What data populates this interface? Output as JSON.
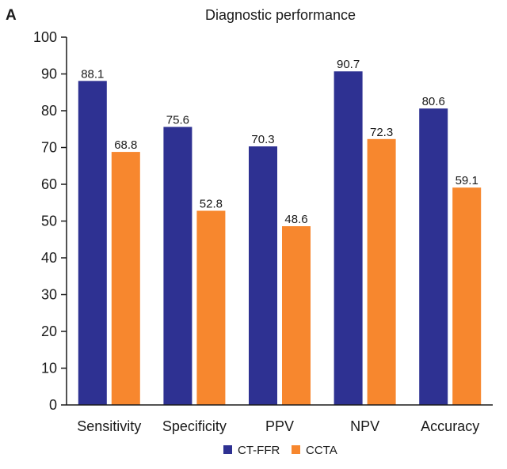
{
  "panel_label": "A",
  "chart_data": {
    "type": "bar",
    "title": "Diagnostic performance",
    "categories": [
      "Sensitivity",
      "Specificity",
      "PPV",
      "NPV",
      "Accuracy"
    ],
    "series": [
      {
        "name": "CT-FFR",
        "color": "#2e3192",
        "values": [
          88.1,
          75.6,
          70.3,
          90.7,
          80.6
        ]
      },
      {
        "name": "CCTA",
        "color": "#f7872e",
        "values": [
          68.8,
          52.8,
          48.6,
          72.3,
          59.1
        ]
      }
    ],
    "ylim": [
      0,
      100
    ],
    "yticks": [
      0,
      10,
      20,
      30,
      40,
      50,
      60,
      70,
      80,
      90,
      100
    ],
    "xlabel": "",
    "ylabel": "",
    "legend_position": "bottom-center",
    "grid": false
  }
}
